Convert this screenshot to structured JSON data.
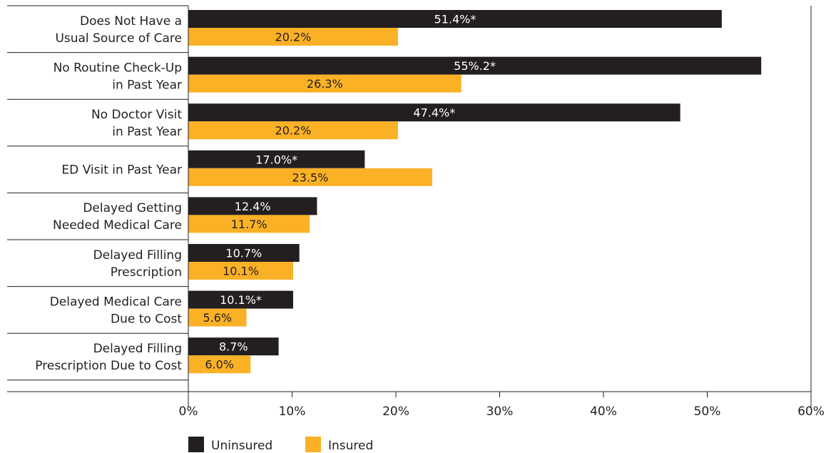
{
  "chart_data": {
    "type": "bar",
    "orientation": "horizontal",
    "categories": [
      [
        "Does Not Have a",
        "Usual Source of Care"
      ],
      [
        "No Routine Check-Up",
        "in Past Year"
      ],
      [
        "No Doctor Visit",
        "in Past Year"
      ],
      [
        "ED Visit in Past Year"
      ],
      [
        "Delayed Getting",
        "Needed Medical Care"
      ],
      [
        "Delayed Filling",
        "Prescription"
      ],
      [
        "Delayed Medical Care",
        "Due to Cost"
      ],
      [
        "Delayed Filling",
        "Prescription Due to Cost"
      ]
    ],
    "series": [
      {
        "name": "Uninsured",
        "color": "#231f20",
        "values": [
          51.4,
          55.2,
          47.4,
          17.0,
          12.4,
          10.7,
          10.1,
          8.7
        ],
        "labels": [
          "51.4%*",
          "55%.2*",
          "47.4%*",
          "17.0%*",
          "12.4%",
          "10.7%",
          "10.1%*",
          "8.7%"
        ]
      },
      {
        "name": "Insured",
        "color": "#fbb126",
        "values": [
          20.2,
          26.3,
          20.2,
          23.5,
          11.7,
          10.1,
          5.6,
          6.0
        ],
        "labels": [
          "20.2%",
          "26.3%",
          "20.2%",
          "23.5%",
          "11.7%",
          "10.1%",
          "5.6%",
          "6.0%"
        ]
      }
    ],
    "xlim": [
      0,
      60
    ],
    "xticks": [
      0,
      10,
      20,
      30,
      40,
      50,
      60
    ],
    "xtick_labels": [
      "0%",
      "10%",
      "20%",
      "30%",
      "40%",
      "50%",
      "60%"
    ],
    "legend_position": "bottom-left",
    "grid": false
  }
}
